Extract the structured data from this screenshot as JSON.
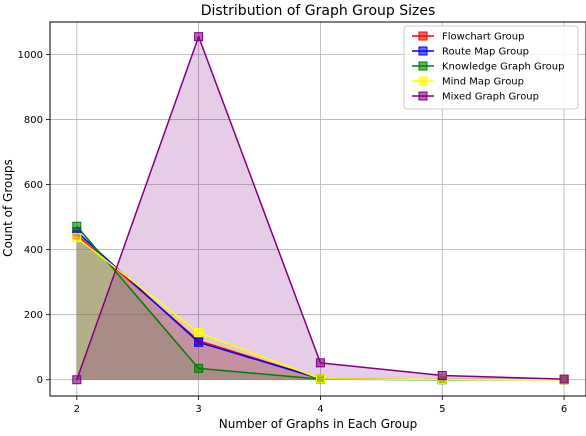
{
  "chart_data": {
    "type": "area",
    "title": "Distribution of Graph Group Sizes",
    "xlabel": "Number of Graphs in Each Group",
    "ylabel": "Count of Groups",
    "x": [
      2,
      3,
      4,
      5,
      6
    ],
    "xlim": [
      1.78,
      6.18
    ],
    "ylim": [
      -50,
      1100
    ],
    "xticks": [
      2,
      3,
      4,
      5,
      6
    ],
    "yticks": [
      0,
      200,
      400,
      600,
      800,
      1000
    ],
    "grid": true,
    "legend_position": "top-right",
    "series": [
      {
        "name": "Flowchart Group",
        "color": "#ff0000",
        "values": [
          445,
          120,
          3,
          1,
          0
        ]
      },
      {
        "name": "Route Map Group",
        "color": "#0000ff",
        "values": [
          455,
          115,
          3,
          1,
          0
        ]
      },
      {
        "name": "Knowledge Graph Group",
        "color": "#008000",
        "values": [
          472,
          35,
          2,
          0,
          0
        ]
      },
      {
        "name": "Mind Map Group",
        "color": "#ffff00",
        "values": [
          437,
          145,
          3,
          1,
          0
        ]
      },
      {
        "name": "Mixed Graph Group",
        "color": "#800080",
        "values": [
          0,
          1055,
          52,
          13,
          2
        ]
      }
    ]
  }
}
